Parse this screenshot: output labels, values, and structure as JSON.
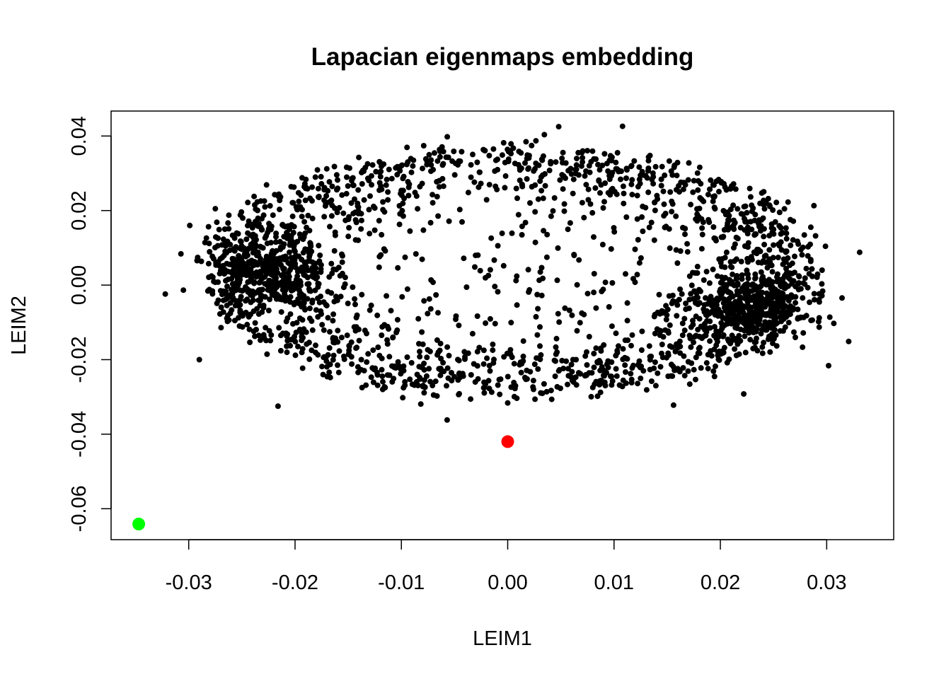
{
  "chart_data": {
    "type": "scatter",
    "title": "Lapacian eigenmaps embedding",
    "xlabel": "LEIM1",
    "ylabel": "LEIM2",
    "xlim": [
      -0.0373,
      0.0363
    ],
    "ylim": [
      -0.0683,
      0.0467
    ],
    "x_ticks": [
      -0.03,
      -0.02,
      -0.01,
      0.0,
      0.01,
      0.02,
      0.03
    ],
    "x_tick_labels": [
      "-0.03",
      "-0.02",
      "-0.01",
      "0.00",
      "0.01",
      "0.02",
      "0.03"
    ],
    "y_ticks": [
      -0.06,
      -0.04,
      -0.02,
      0.0,
      0.02,
      0.04
    ],
    "y_tick_labels": [
      "-0.06",
      "-0.04",
      "-0.02",
      "0.00",
      "0.02",
      "0.04"
    ],
    "grid": false,
    "legend": "none",
    "cloud": {
      "color": "#000000",
      "count": 2600,
      "note_points": "dense point cloud, approx. elliptical ring centered near (0.0, 0.004), spanning x from about -0.032 to 0.033 and y from about -0.036 to 0.043, with denser clusters near (-0.022, 0.004) and (0.022, -0.008)",
      "anchors": [
        {
          "x": -0.0322,
          "y": -0.0024
        },
        {
          "x": -0.0299,
          "y": 0.016
        },
        {
          "x": -0.029,
          "y": -0.02
        },
        {
          "x": -0.0275,
          "y": 0.0205
        },
        {
          "x": -0.0229,
          "y": 0.004
        },
        {
          "x": -0.0216,
          "y": -0.0325
        },
        {
          "x": -0.0079,
          "y": 0.0374
        },
        {
          "x": -0.0057,
          "y": -0.0362
        },
        {
          "x": 0.0048,
          "y": 0.0425
        },
        {
          "x": 0.0108,
          "y": 0.0426
        },
        {
          "x": 0.0156,
          "y": -0.0322
        },
        {
          "x": 0.0222,
          "y": -0.0292
        },
        {
          "x": 0.0218,
          "y": -0.009
        },
        {
          "x": 0.0262,
          "y": 0.003
        },
        {
          "x": 0.0288,
          "y": 0.0213
        },
        {
          "x": 0.0331,
          "y": 0.0088
        }
      ]
    },
    "highlights": [
      {
        "x": 0.0,
        "y": -0.042,
        "color": "#ff0000"
      },
      {
        "x": -0.0347,
        "y": -0.0641,
        "color": "#00ff00"
      }
    ]
  }
}
